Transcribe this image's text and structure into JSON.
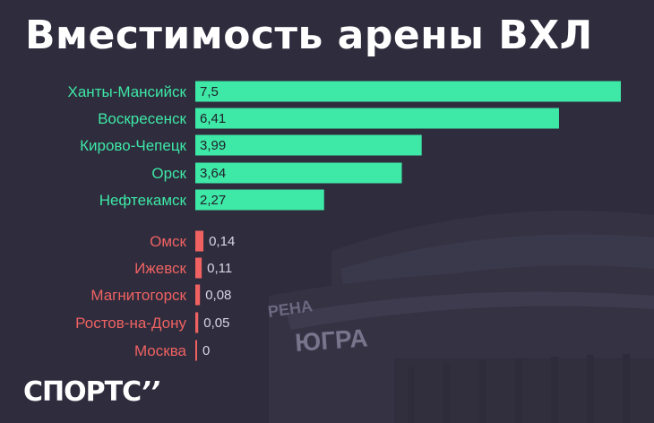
{
  "title": "Вместимость арены ВХЛ",
  "logo": {
    "text": "СПОРТС",
    "mark": "’’"
  },
  "background": {
    "sign_arena": "РЕНА",
    "sign_ugra": "ЮГРА"
  },
  "colors": {
    "background": "#2e2c3d",
    "positive": "#3ee8a6",
    "negative": "#f06262",
    "value_text": "#1f1f2a"
  },
  "chart_data": {
    "type": "bar",
    "orientation": "horizontal",
    "title": "Вместимость арены ВХЛ",
    "categories": [
      "Ханты-Мансийск",
      "Воскресенск",
      "Кирово-Чепецк",
      "Орск",
      "Нефтекамск",
      "Омск",
      "Ижевск",
      "Магнитогорск",
      "Ростов-на-Дону",
      "Москва"
    ],
    "values": [
      7.5,
      6.41,
      3.99,
      3.64,
      2.27,
      0.14,
      0.11,
      0.08,
      0.05,
      0
    ],
    "value_labels": [
      "7,5",
      "6,41",
      "3,99",
      "3,64",
      "2,27",
      "0,14",
      "0,11",
      "0,08",
      "0,05",
      "0"
    ],
    "groups": [
      "top",
      "top",
      "top",
      "top",
      "top",
      "bottom",
      "bottom",
      "bottom",
      "bottom",
      "bottom"
    ],
    "xlim": [
      0,
      7.5
    ],
    "grid": false,
    "legend": "none"
  }
}
